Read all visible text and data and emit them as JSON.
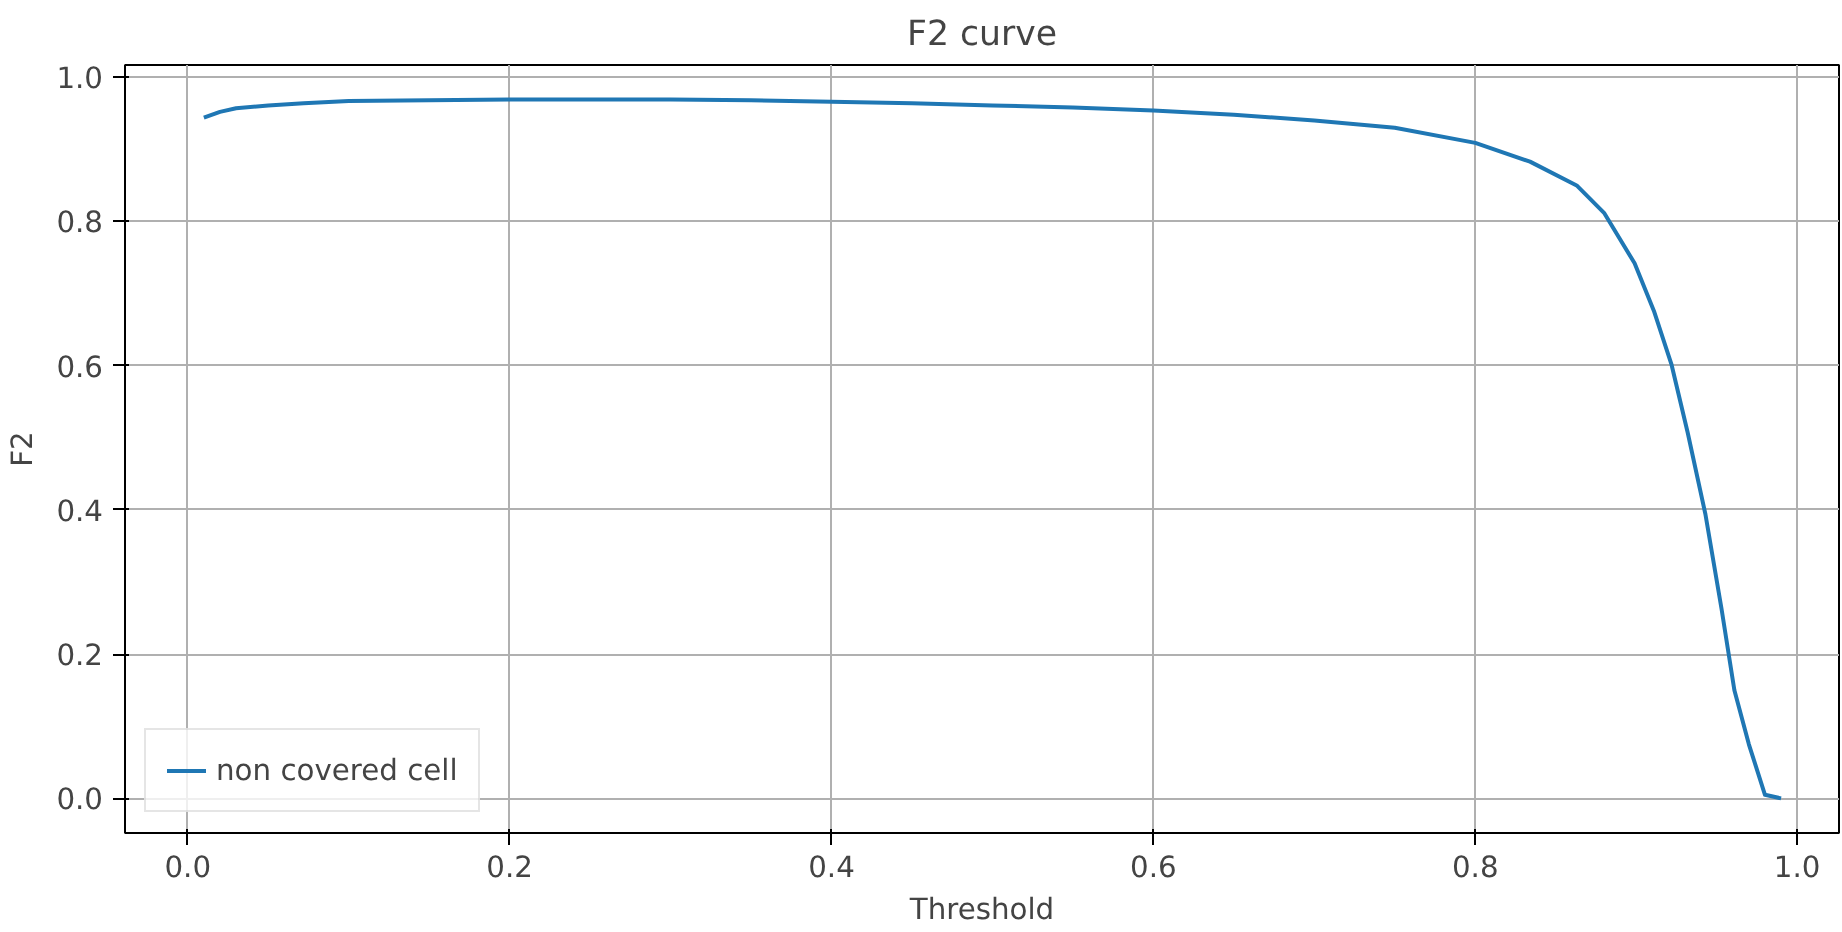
{
  "chart_data": {
    "type": "line",
    "title": "F2 curve",
    "xlabel": "Threshold",
    "ylabel": "F2",
    "x": [
      0.01,
      0.02,
      0.03,
      0.05,
      0.072,
      0.1,
      0.15,
      0.2,
      0.25,
      0.3,
      0.35,
      0.4,
      0.45,
      0.5,
      0.55,
      0.6,
      0.65,
      0.7,
      0.75,
      0.8,
      0.834,
      0.863,
      0.88,
      0.899,
      0.911,
      0.922,
      0.932,
      0.943,
      0.953,
      0.961,
      0.97,
      0.98,
      0.99
    ],
    "series": [
      {
        "name": "non covered cell",
        "color": "#1f77b4",
        "values": [
          0.944,
          0.952,
          0.957,
          0.961,
          0.964,
          0.967,
          0.968,
          0.969,
          0.969,
          0.969,
          0.968,
          0.966,
          0.964,
          0.961,
          0.958,
          0.954,
          0.948,
          0.94,
          0.93,
          0.909,
          0.883,
          0.85,
          0.812,
          0.742,
          0.676,
          0.601,
          0.507,
          0.394,
          0.263,
          0.15,
          0.075,
          0.005,
          0.0
        ]
      }
    ],
    "xlim": [
      -0.039,
      1.026
    ],
    "ylim": [
      -0.048,
      1.017
    ],
    "xticks": [
      {
        "value": 0,
        "label": "0.0"
      },
      0.2,
      0.4,
      0.6,
      0.8,
      {
        "value": 1,
        "label": "1.0"
      }
    ],
    "yticks": [
      {
        "value": 0,
        "label": "0.0"
      },
      0.2,
      0.4,
      0.6,
      0.8,
      {
        "value": 1,
        "label": "1.0"
      }
    ],
    "grid": true,
    "legend": "bottom left",
    "marker": "none",
    "line_style": "solid"
  }
}
